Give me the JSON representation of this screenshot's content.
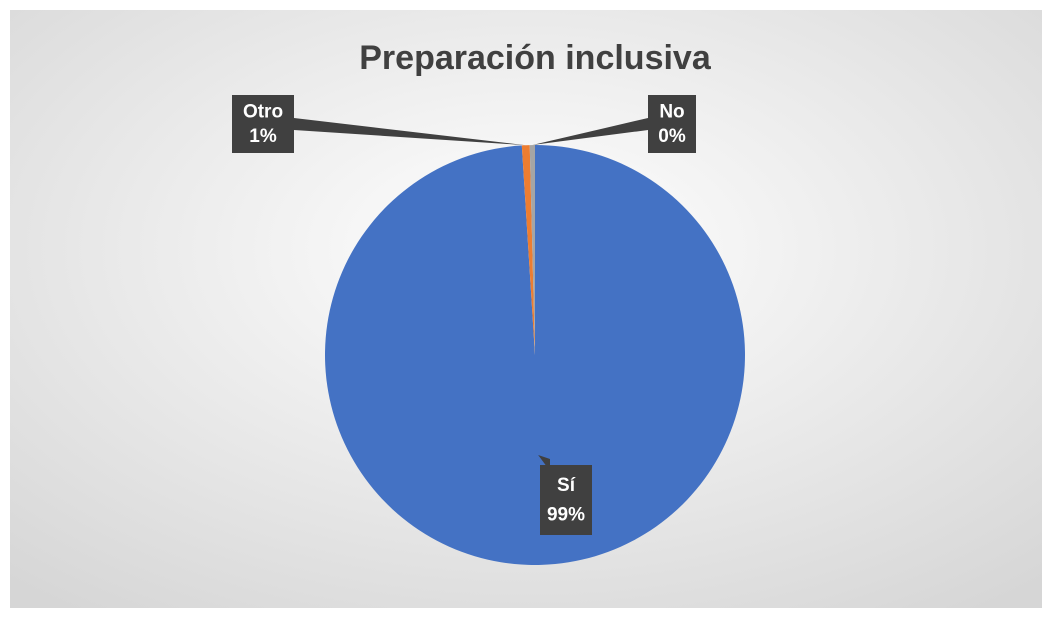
{
  "chart_data": {
    "type": "pie",
    "title": "Preparación inclusiva",
    "categories": [
      "Sí",
      "Otro",
      "No"
    ],
    "values": [
      99,
      0.6,
      0.4
    ],
    "value_labels": [
      "99%",
      "1%",
      "0%"
    ],
    "colors": [
      "#4472c4",
      "#ed7d31",
      "#a5a5a5"
    ]
  }
}
